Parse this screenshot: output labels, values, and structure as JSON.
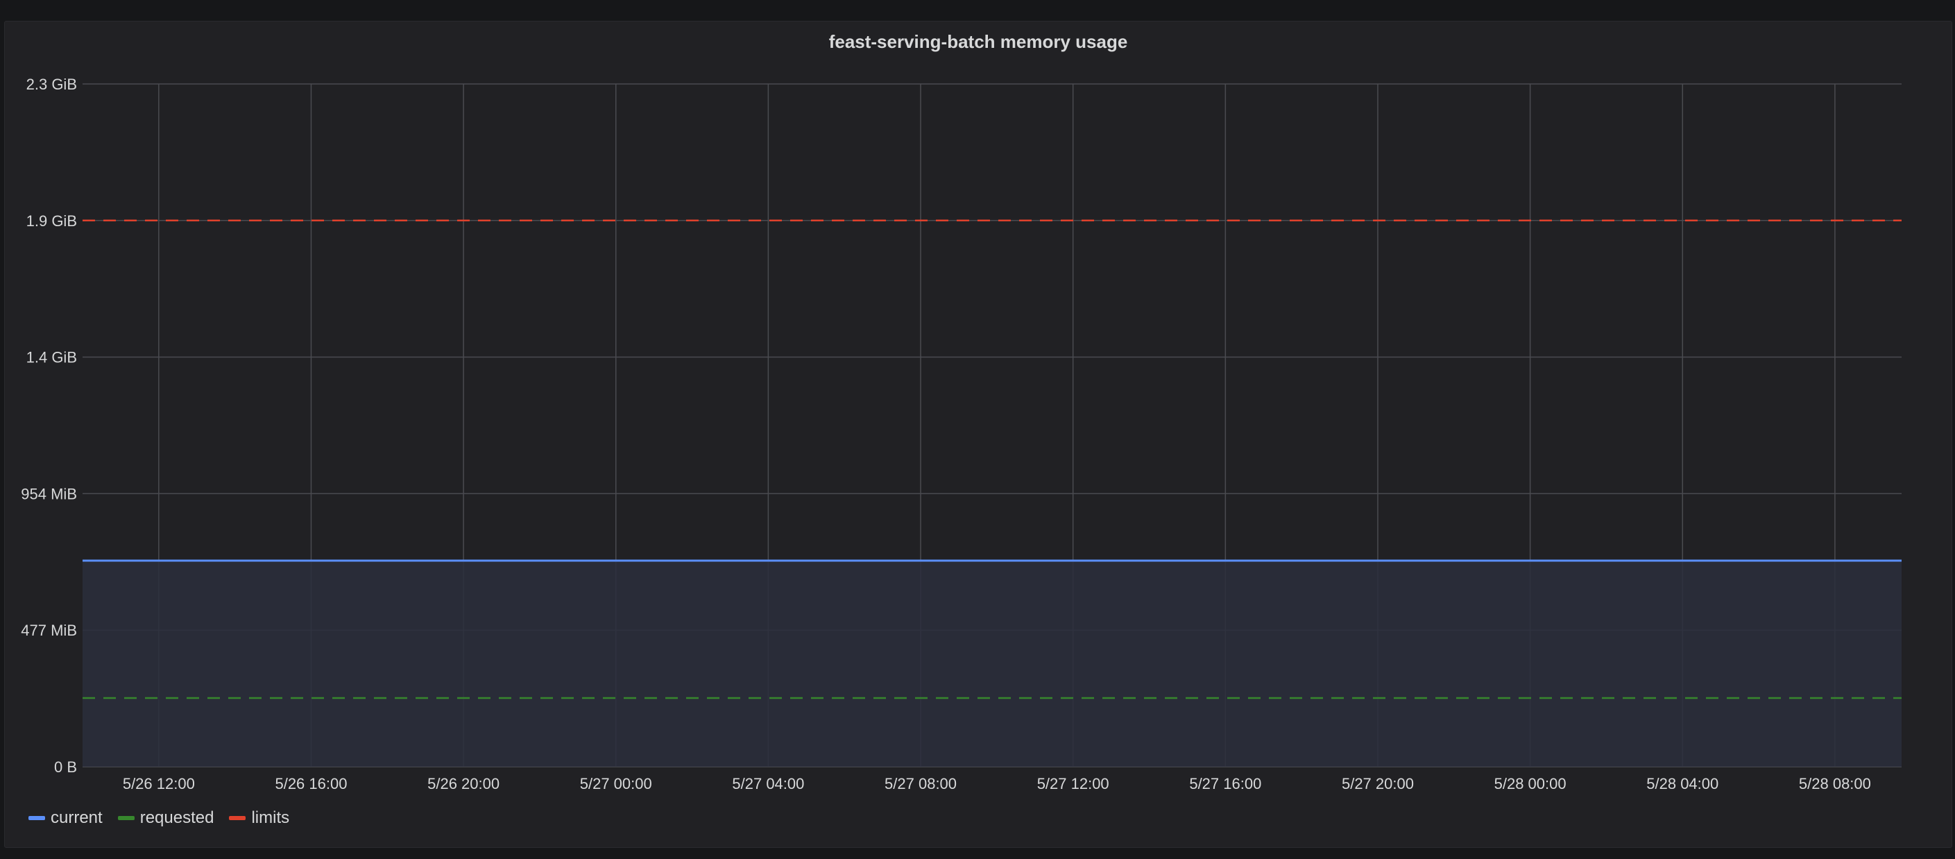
{
  "panel": {
    "title": "feast-serving-batch memory usage"
  },
  "colors": {
    "background": "#212124",
    "grid": "#4a4b50",
    "current": "#5b8ff9",
    "current_fill": "#2a2e3c",
    "requested": "#37872d",
    "limits": "#e0412c"
  },
  "chart_data": {
    "type": "area",
    "title": "feast-serving-batch memory usage",
    "x_ticks": [
      "5/26 12:00",
      "5/26 16:00",
      "5/26 20:00",
      "5/27 00:00",
      "5/27 04:00",
      "5/27 08:00",
      "5/27 12:00",
      "5/27 16:00",
      "5/27 20:00",
      "5/28 00:00",
      "5/28 04:00",
      "5/28 08:00"
    ],
    "x_range": [
      "5/26 10:00",
      "5/28 09:45"
    ],
    "y_ticks": [
      "0 B",
      "477 MiB",
      "954 MiB",
      "1.4 GiB",
      "1.9 GiB",
      "2.3 GiB"
    ],
    "y_unit": "MiB",
    "ylim": [
      0,
      2385
    ],
    "grid": true,
    "legend_position": "bottom-left",
    "series": [
      {
        "name": "current",
        "style": "solid-area",
        "values": [
          720,
          720
        ]
      },
      {
        "name": "requested",
        "style": "dashed",
        "values": [
          240,
          240
        ]
      },
      {
        "name": "limits",
        "style": "dashed",
        "values": [
          1908,
          1908
        ]
      }
    ]
  }
}
